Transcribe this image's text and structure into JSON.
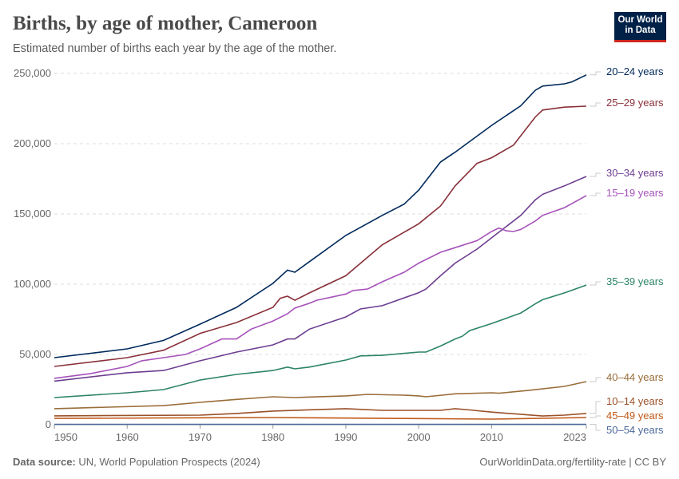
{
  "header": {
    "title": "Births, by age of mother, Cameroon",
    "subtitle": "Estimated number of births each year by the age of the mother.",
    "logo": "Our World in Data"
  },
  "footer": {
    "source_label": "Data source:",
    "source": "UN, World Population Prospects (2024)",
    "url": "OurWorldinData.org/fertility-rate | CC BY"
  },
  "chart_data": {
    "type": "line",
    "title": "Births, by age of mother, Cameroon",
    "xlim": [
      1950,
      2023
    ],
    "ylim": [
      0,
      250000
    ],
    "x_ticks": [
      "1950",
      "1960",
      "1970",
      "1980",
      "1990",
      "2000",
      "2010",
      "2023"
    ],
    "y_ticks": [
      "0",
      "50,000",
      "100,000",
      "150,000",
      "200,000",
      "250,000"
    ],
    "grid": "horizontal dashed",
    "legend": "right, inline labels",
    "series": [
      {
        "name": "20–24 years",
        "color": "#00295b",
        "points": [
          [
            1950,
            47700
          ],
          [
            1960,
            54000
          ],
          [
            1965,
            60000
          ],
          [
            1970,
            71600
          ],
          [
            1975,
            83500
          ],
          [
            1980,
            100600
          ],
          [
            1982,
            110000
          ],
          [
            1983,
            108500
          ],
          [
            1985,
            116000
          ],
          [
            1990,
            134700
          ],
          [
            1995,
            149000
          ],
          [
            1998,
            157000
          ],
          [
            2000,
            167000
          ],
          [
            2003,
            187000
          ],
          [
            2005,
            194000
          ],
          [
            2010,
            213000
          ],
          [
            2014,
            227000
          ],
          [
            2016,
            238000
          ],
          [
            2017,
            241000
          ],
          [
            2020,
            242600
          ],
          [
            2021,
            244000
          ],
          [
            2023,
            249000
          ]
        ]
      },
      {
        "name": "25–29 years",
        "color": "#883039",
        "points": [
          [
            1950,
            41500
          ],
          [
            1960,
            47700
          ],
          [
            1965,
            53000
          ],
          [
            1970,
            65000
          ],
          [
            1975,
            72700
          ],
          [
            1980,
            83500
          ],
          [
            1981,
            90000
          ],
          [
            1982,
            91500
          ],
          [
            1983,
            88600
          ],
          [
            1985,
            93800
          ],
          [
            1990,
            106000
          ],
          [
            1995,
            128000
          ],
          [
            2000,
            143000
          ],
          [
            2003,
            155700
          ],
          [
            2005,
            170000
          ],
          [
            2008,
            186000
          ],
          [
            2010,
            190000
          ],
          [
            2013,
            199000
          ],
          [
            2016,
            219000
          ],
          [
            2017,
            224000
          ],
          [
            2020,
            226000
          ],
          [
            2023,
            226700
          ]
        ]
      },
      {
        "name": "30–34 years",
        "color": "#6d3e91",
        "points": [
          [
            1950,
            31000
          ],
          [
            1960,
            37000
          ],
          [
            1965,
            38600
          ],
          [
            1970,
            45500
          ],
          [
            1975,
            51700
          ],
          [
            1980,
            56800
          ],
          [
            1982,
            61000
          ],
          [
            1983,
            61000
          ],
          [
            1985,
            68000
          ],
          [
            1990,
            76700
          ],
          [
            1992,
            82400
          ],
          [
            1995,
            84700
          ],
          [
            2000,
            94000
          ],
          [
            2001,
            96600
          ],
          [
            2003,
            106000
          ],
          [
            2005,
            115000
          ],
          [
            2008,
            125000
          ],
          [
            2010,
            133000
          ],
          [
            2014,
            149000
          ],
          [
            2016,
            160000
          ],
          [
            2017,
            164000
          ],
          [
            2020,
            170000
          ],
          [
            2023,
            176700
          ]
        ]
      },
      {
        "name": "15–19 years",
        "color": "#a652ba",
        "points": [
          [
            1950,
            33000
          ],
          [
            1955,
            36400
          ],
          [
            1960,
            41500
          ],
          [
            1962,
            45500
          ],
          [
            1965,
            47700
          ],
          [
            1968,
            50000
          ],
          [
            1970,
            54000
          ],
          [
            1973,
            61000
          ],
          [
            1975,
            61000
          ],
          [
            1977,
            68000
          ],
          [
            1980,
            73800
          ],
          [
            1982,
            79000
          ],
          [
            1983,
            83000
          ],
          [
            1985,
            86400
          ],
          [
            1986,
            88600
          ],
          [
            1990,
            93000
          ],
          [
            1991,
            95500
          ],
          [
            1993,
            96600
          ],
          [
            1995,
            101700
          ],
          [
            1998,
            108500
          ],
          [
            2000,
            115000
          ],
          [
            2003,
            122700
          ],
          [
            2005,
            126000
          ],
          [
            2008,
            131000
          ],
          [
            2010,
            137500
          ],
          [
            2011,
            140000
          ],
          [
            2012,
            138000
          ],
          [
            2013,
            137500
          ],
          [
            2014,
            139000
          ],
          [
            2016,
            145000
          ],
          [
            2017,
            149000
          ],
          [
            2020,
            154500
          ],
          [
            2023,
            163000
          ]
        ]
      },
      {
        "name": "35–39 years",
        "color": "#2c8465",
        "points": [
          [
            1950,
            19300
          ],
          [
            1960,
            22700
          ],
          [
            1965,
            25000
          ],
          [
            1970,
            31800
          ],
          [
            1975,
            35800
          ],
          [
            1980,
            38600
          ],
          [
            1982,
            41000
          ],
          [
            1983,
            39800
          ],
          [
            1985,
            41000
          ],
          [
            1990,
            46000
          ],
          [
            1992,
            49000
          ],
          [
            1995,
            49400
          ],
          [
            2000,
            51700
          ],
          [
            2001,
            51700
          ],
          [
            2003,
            56000
          ],
          [
            2005,
            61000
          ],
          [
            2006,
            63000
          ],
          [
            2007,
            67000
          ],
          [
            2010,
            72000
          ],
          [
            2014,
            79500
          ],
          [
            2016,
            86000
          ],
          [
            2017,
            89000
          ],
          [
            2020,
            93800
          ],
          [
            2023,
            99400
          ]
        ]
      },
      {
        "name": "40–44 years",
        "color": "#996d39",
        "points": [
          [
            1950,
            11400
          ],
          [
            1965,
            13600
          ],
          [
            1970,
            15900
          ],
          [
            1975,
            18000
          ],
          [
            1980,
            19900
          ],
          [
            1983,
            19300
          ],
          [
            1990,
            20500
          ],
          [
            1993,
            21600
          ],
          [
            1998,
            21000
          ],
          [
            2000,
            20500
          ],
          [
            2001,
            19900
          ],
          [
            2005,
            22000
          ],
          [
            2010,
            22700
          ],
          [
            2011,
            22400
          ],
          [
            2015,
            24400
          ],
          [
            2020,
            27300
          ],
          [
            2023,
            30700
          ]
        ]
      },
      {
        "name": "10–14 years",
        "color": "#9a5129",
        "points": [
          [
            1950,
            6300
          ],
          [
            1970,
            6800
          ],
          [
            1975,
            8000
          ],
          [
            1980,
            9700
          ],
          [
            1990,
            11400
          ],
          [
            1995,
            10200
          ],
          [
            2003,
            10200
          ],
          [
            2005,
            11400
          ],
          [
            2007,
            10500
          ],
          [
            2010,
            9000
          ],
          [
            2017,
            6200
          ],
          [
            2020,
            6800
          ],
          [
            2023,
            8000
          ]
        ]
      },
      {
        "name": "45–49 years",
        "color": "#c05917",
        "points": [
          [
            1950,
            4500
          ],
          [
            1980,
            5100
          ],
          [
            2010,
            4000
          ],
          [
            2023,
            5100
          ]
        ]
      },
      {
        "name": "50–54 years",
        "color": "#4c6a9c",
        "points": [
          [
            1950,
            300
          ],
          [
            2023,
            300
          ]
        ]
      }
    ]
  }
}
